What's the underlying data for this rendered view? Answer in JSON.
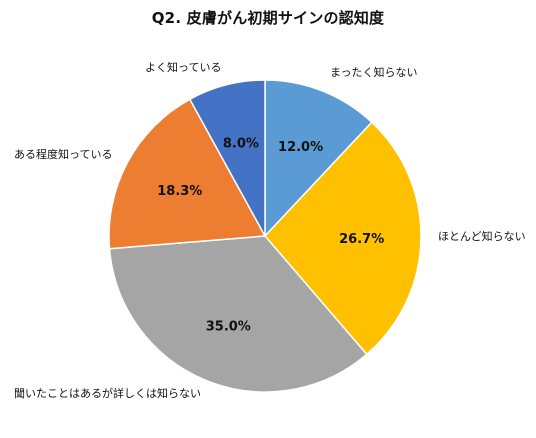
{
  "chart_data": {
    "type": "pie",
    "title": "Q2. 皮膚がん初期サインの認知度",
    "start": "top",
    "direction": "clockwise",
    "legend": "none",
    "slices": [
      {
        "label": "まったく知らない",
        "value": 12.0,
        "display": "12.0%",
        "color": "#5b9bd5"
      },
      {
        "label": "ほとんど知らない",
        "value": 26.7,
        "display": "26.7%",
        "color": "#ffc000"
      },
      {
        "label": "聞いたことはあるが詳しくは知らない",
        "value": 35.0,
        "display": "35.0%",
        "color": "#a5a5a5"
      },
      {
        "label": "ある程度知っている",
        "value": 18.3,
        "display": "18.3%",
        "color": "#ed7d31"
      },
      {
        "label": "よく知っている",
        "value": 8.0,
        "display": "8.0%",
        "color": "#4472c4"
      }
    ]
  }
}
